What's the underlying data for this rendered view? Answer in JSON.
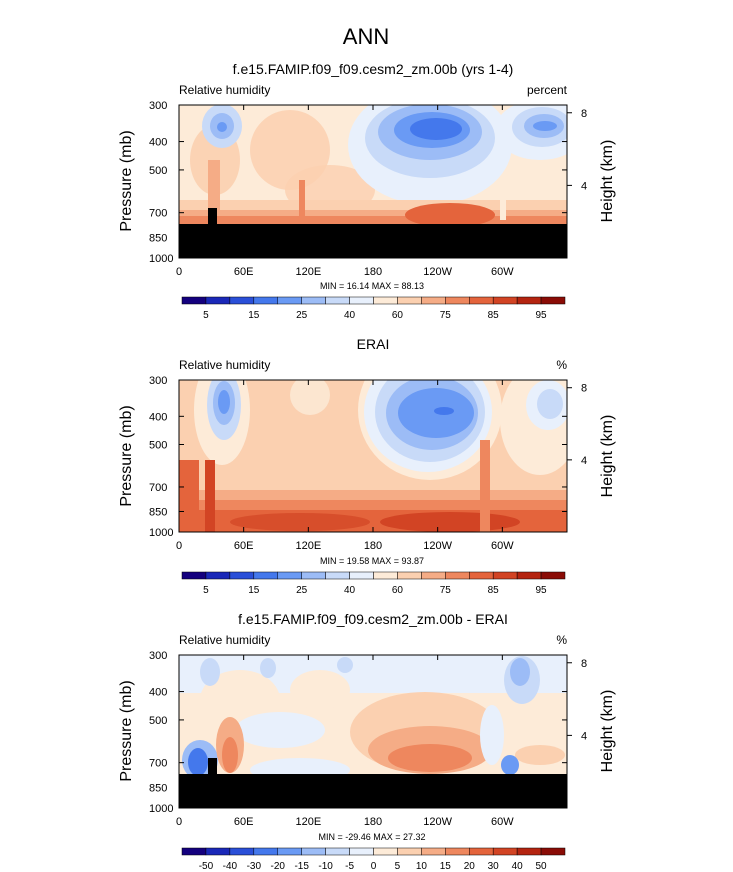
{
  "figure": {
    "title": "ANN"
  },
  "chart_data": [
    {
      "type": "heatmap",
      "title": "f.e15.FAMIP.f09_f09.cesm2_zm.00b (yrs 1-4)",
      "variable_label": "Relative humidity",
      "units": "percent",
      "ylabel": "Pressure (mb)",
      "y2label": "Height (km)",
      "pressure_levels": [
        300,
        400,
        500,
        700,
        850,
        1000
      ],
      "height_ticks": [
        8,
        4
      ],
      "x_tick_labels": [
        "0",
        "60E",
        "120E",
        "180",
        "120W",
        "60W"
      ],
      "x_tick_lons": [
        0,
        60,
        120,
        180,
        240,
        300
      ],
      "xlim": [
        0,
        360
      ],
      "ylim": [
        1000,
        300
      ],
      "stats": "MIN =  16.14  MAX =  88.13",
      "min": 16.14,
      "max": 88.13,
      "colorbar_labels": [
        "5",
        "15",
        "25",
        "40",
        "60",
        "75",
        "85",
        "95"
      ],
      "colorbar_colors": [
        "#14007e",
        "#1a28b8",
        "#2a4fd8",
        "#4478ec",
        "#6a9af4",
        "#9cbcf6",
        "#c8daf8",
        "#e8f0fc",
        "#fdebd8",
        "#fbd0b0",
        "#f5ac86",
        "#ee875e",
        "#e4643c",
        "#d24424",
        "#b42410",
        "#8a0c06"
      ],
      "missing_color": "#000000"
    },
    {
      "type": "heatmap",
      "title": "ERAI",
      "variable_label": "Relative humidity",
      "units": "%",
      "ylabel": "Pressure (mb)",
      "y2label": "Height (km)",
      "pressure_levels": [
        300,
        400,
        500,
        700,
        850,
        1000
      ],
      "height_ticks": [
        8,
        4
      ],
      "x_tick_labels": [
        "0",
        "60E",
        "120E",
        "180",
        "120W",
        "60W"
      ],
      "x_tick_lons": [
        0,
        60,
        120,
        180,
        240,
        300
      ],
      "xlim": [
        0,
        360
      ],
      "ylim": [
        1000,
        300
      ],
      "stats": "MIN =  19.58  MAX =  93.87",
      "min": 19.58,
      "max": 93.87,
      "colorbar_labels": [
        "5",
        "15",
        "25",
        "40",
        "60",
        "75",
        "85",
        "95"
      ],
      "colorbar_colors": [
        "#14007e",
        "#1a28b8",
        "#2a4fd8",
        "#4478ec",
        "#6a9af4",
        "#9cbcf6",
        "#c8daf8",
        "#e8f0fc",
        "#fdebd8",
        "#fbd0b0",
        "#f5ac86",
        "#ee875e",
        "#e4643c",
        "#d24424",
        "#b42410",
        "#8a0c06"
      ],
      "missing_color": "#000000"
    },
    {
      "type": "heatmap",
      "title": "f.e15.FAMIP.f09_f09.cesm2_zm.00b - ERAI",
      "variable_label": "Relative humidity",
      "units": "%",
      "ylabel": "Pressure (mb)",
      "y2label": "Height (km)",
      "pressure_levels": [
        300,
        400,
        500,
        700,
        850,
        1000
      ],
      "height_ticks": [
        8,
        4
      ],
      "x_tick_labels": [
        "0",
        "60E",
        "120E",
        "180",
        "120W",
        "60W"
      ],
      "x_tick_lons": [
        0,
        60,
        120,
        180,
        240,
        300
      ],
      "xlim": [
        0,
        360
      ],
      "ylim": [
        1000,
        300
      ],
      "stats": "MIN = -29.46  MAX =  27.32",
      "min": -29.46,
      "max": 27.32,
      "colorbar_labels": [
        "-50",
        "-40",
        "-30",
        "-20",
        "-15",
        "-10",
        "-5",
        "0",
        "5",
        "10",
        "15",
        "20",
        "30",
        "40",
        "50"
      ],
      "colorbar_colors": [
        "#14007e",
        "#1a28b8",
        "#2a4fd8",
        "#4478ec",
        "#6a9af4",
        "#9cbcf6",
        "#c8daf8",
        "#e8f0fc",
        "#fdebd8",
        "#fbd0b0",
        "#f5ac86",
        "#ee875e",
        "#e4643c",
        "#d24424",
        "#b42410",
        "#8a0c06"
      ],
      "missing_color": "#000000"
    }
  ]
}
